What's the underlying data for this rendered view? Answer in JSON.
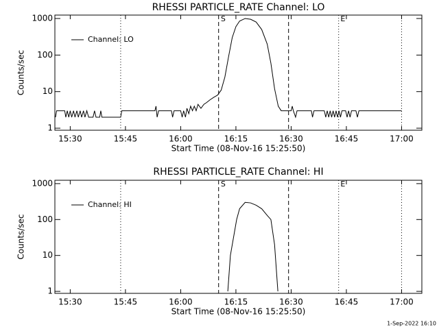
{
  "chart_data": [
    {
      "type": "line",
      "title": "RHESSI PARTICLE_RATE Channel: LO",
      "xlabel": "Start Time (08-Nov-16 15:25:50)",
      "ylabel": "Counts/sec",
      "log_y": true,
      "legend": "upper left",
      "xlim": [
        925.83,
        1025.5
      ],
      "xticks": [
        {
          "value": 930,
          "label": "15:30"
        },
        {
          "value": 945,
          "label": "15:45"
        },
        {
          "value": 960,
          "label": "16:00"
        },
        {
          "value": 975,
          "label": "16:15"
        },
        {
          "value": 990,
          "label": "16:30"
        },
        {
          "value": 1005,
          "label": "16:45"
        },
        {
          "value": 1020,
          "label": "17:00"
        }
      ],
      "ylim": [
        0.88,
        1240
      ],
      "yticks": [
        1,
        10,
        100,
        1000
      ],
      "vlines": [
        {
          "x": 943.7,
          "style": "dotted"
        },
        {
          "x": 970.3,
          "style": "dashed"
        },
        {
          "x": 989.3,
          "style": "dashed"
        },
        {
          "x": 1002.9,
          "style": "dotted"
        },
        {
          "x": 1020,
          "style": "dotted"
        }
      ],
      "annotations": [
        {
          "text": "S",
          "x": 970.9
        },
        {
          "text": "E",
          "x": 1003.4
        }
      ],
      "series": [
        {
          "name": "Channel: LO",
          "color": "#000000",
          "x": [
            926,
            926.3,
            928.5,
            928.8,
            929.2,
            929.6,
            930,
            930.4,
            930.9,
            931.3,
            931.8,
            932.2,
            932.7,
            933.1,
            933.6,
            934,
            934.5,
            935,
            936.2,
            936.6,
            937,
            938,
            938.3,
            938.6,
            943.7,
            944,
            953,
            953.3,
            953.6,
            954,
            957.5,
            957.8,
            958.2,
            960,
            960.4,
            960.8,
            961.3,
            961.7,
            962.2,
            962.7,
            963.2,
            963.7,
            964.2,
            964.7,
            965.5,
            966.3,
            967,
            968,
            969,
            970,
            971,
            972,
            973,
            974,
            975,
            976,
            977.5,
            979,
            980.5,
            982,
            983.5,
            984.5,
            985.5,
            986.5,
            987.3,
            990,
            990.3,
            990.6,
            991.2,
            991.6,
            995.5,
            995.8,
            996.2,
            999,
            999.4,
            999.8,
            1000.2,
            1000.6,
            1001,
            1001.4,
            1001.8,
            1002.2,
            1002.6,
            1003,
            1003.4,
            1003.8,
            1004.8,
            1005.2,
            1005.6,
            1006,
            1006.4,
            1007.6,
            1008,
            1008.4,
            1020
          ],
          "values": [
            2,
            3,
            3,
            2,
            3,
            2,
            3,
            2,
            3,
            2,
            3,
            2,
            3,
            2,
            3,
            2,
            3,
            2,
            2,
            3,
            2,
            2,
            3,
            2,
            2,
            3,
            3,
            4,
            2,
            3,
            3,
            2,
            3,
            3,
            2,
            3,
            2,
            3.5,
            2.5,
            4,
            3,
            4,
            3,
            4.5,
            3.5,
            4.5,
            5,
            6,
            7,
            8,
            11,
            25,
            90,
            300,
            600,
            850,
            1000,
            950,
            800,
            500,
            200,
            60,
            12,
            4,
            3,
            3,
            4,
            3,
            2,
            3,
            3,
            2,
            3,
            3,
            2,
            3,
            2,
            3,
            2,
            3,
            2,
            3,
            2,
            3,
            2,
            3,
            3,
            2,
            3,
            2,
            3,
            3,
            2,
            3,
            3
          ]
        }
      ]
    },
    {
      "type": "line",
      "title": "RHESSI PARTICLE_RATE Channel: HI",
      "xlabel": "Start Time (08-Nov-16 15:25:50)",
      "ylabel": "Counts/sec",
      "log_y": true,
      "legend": "upper left",
      "xlim": [
        925.83,
        1025.5
      ],
      "xticks": [
        {
          "value": 930,
          "label": "15:30"
        },
        {
          "value": 945,
          "label": "15:45"
        },
        {
          "value": 960,
          "label": "16:00"
        },
        {
          "value": 975,
          "label": "16:15"
        },
        {
          "value": 990,
          "label": "16:30"
        },
        {
          "value": 1005,
          "label": "16:45"
        },
        {
          "value": 1020,
          "label": "17:00"
        }
      ],
      "ylim": [
        0.88,
        1240
      ],
      "yticks": [
        1,
        10,
        100,
        1000
      ],
      "vlines": [
        {
          "x": 943.7,
          "style": "dotted"
        },
        {
          "x": 970.3,
          "style": "dashed"
        },
        {
          "x": 989.3,
          "style": "dashed"
        },
        {
          "x": 1002.9,
          "style": "dotted"
        },
        {
          "x": 1020,
          "style": "dotted"
        }
      ],
      "annotations": [
        {
          "text": "S",
          "x": 970.9
        },
        {
          "text": "E",
          "x": 1003.4
        }
      ],
      "series": [
        {
          "name": "Channel: HI",
          "color": "#000000",
          "x": [
            972.8,
            973.5,
            975.2,
            976,
            977.5,
            979,
            980.5,
            982,
            983.5,
            984.5,
            985.5,
            986.4
          ],
          "values": [
            1,
            10,
            100,
            200,
            300,
            290,
            250,
            200,
            130,
            100,
            20,
            1
          ]
        }
      ]
    }
  ],
  "footer": "1-Sep-2022 16:10"
}
